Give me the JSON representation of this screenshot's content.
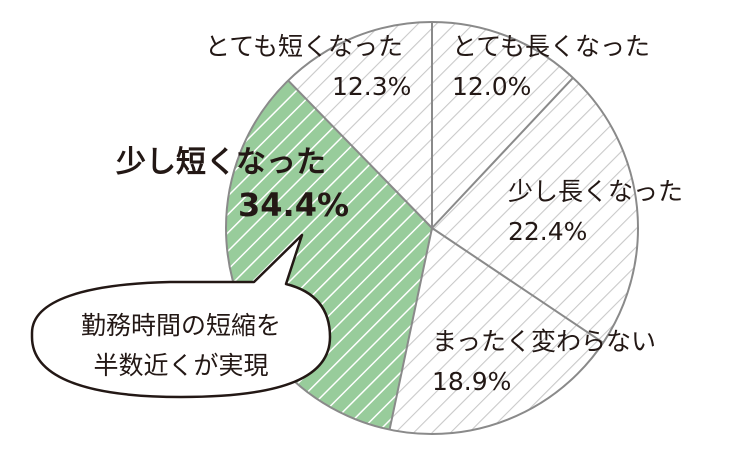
{
  "chart_data": {
    "type": "pie",
    "title": "",
    "slices": [
      {
        "label": "とても長くなった",
        "value": 12.0,
        "value_label": "12.0%",
        "fill": "#ffffff",
        "hatch": "#c9c9c9",
        "emphasis": false
      },
      {
        "label": "少し長くなった",
        "value": 22.4,
        "value_label": "22.4%",
        "fill": "#ffffff",
        "hatch": "#c9c9c9",
        "emphasis": false
      },
      {
        "label": "まったく変わらない",
        "value": 18.9,
        "value_label": "18.9%",
        "fill": "#ffffff",
        "hatch": "#c9c9c9",
        "emphasis": false
      },
      {
        "label": "少し短くなった",
        "value": 34.4,
        "value_label": "34.4%",
        "fill": "#98cc9b",
        "hatch": "#ffffff",
        "emphasis": true
      },
      {
        "label": "とても短くなった",
        "value": 12.3,
        "value_label": "12.3%",
        "fill": "#ffffff",
        "hatch": "#c9c9c9",
        "emphasis": false
      }
    ],
    "start": "12 o'clock",
    "direction": "clockwise",
    "legend": "none"
  },
  "callout": {
    "lines": [
      "勤務時間の短縮を",
      "半数近くが実現"
    ]
  },
  "colors": {
    "text": "#231815",
    "outline": "#8a8a8a",
    "hatch_light": "#c9c9c9",
    "highlight_green": "#98cc9b"
  }
}
